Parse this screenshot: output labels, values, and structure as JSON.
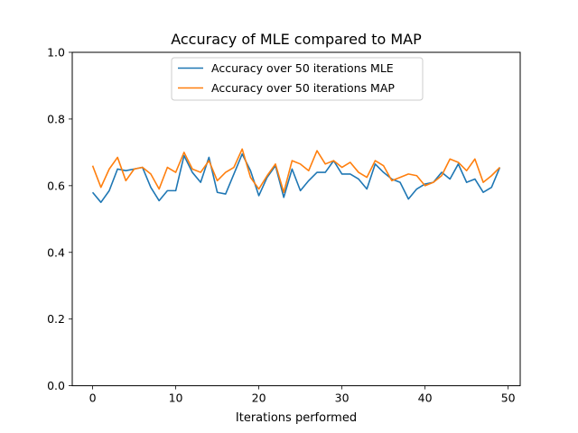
{
  "chart_data": {
    "type": "line",
    "title": "Accuracy of MLE compared to MAP",
    "xlabel": "Iterations performed",
    "ylabel": "",
    "xlim": [
      -2.45,
      51.45
    ],
    "ylim": [
      0.0,
      1.0
    ],
    "xticks": [
      0,
      10,
      20,
      30,
      40,
      50
    ],
    "yticks": [
      0.0,
      0.2,
      0.4,
      0.6,
      0.8,
      1.0
    ],
    "xtick_labels": [
      "0",
      "10",
      "20",
      "30",
      "40",
      "50"
    ],
    "ytick_labels": [
      "0.0",
      "0.2",
      "0.4",
      "0.6",
      "0.8",
      "1.0"
    ],
    "grid": false,
    "legend_position": "upper center",
    "x": [
      0,
      1,
      2,
      3,
      4,
      5,
      6,
      7,
      8,
      9,
      10,
      11,
      12,
      13,
      14,
      15,
      16,
      17,
      18,
      19,
      20,
      21,
      22,
      23,
      24,
      25,
      26,
      27,
      28,
      29,
      30,
      31,
      32,
      33,
      34,
      35,
      36,
      37,
      38,
      39,
      40,
      41,
      42,
      43,
      44,
      45,
      46,
      47,
      48,
      49
    ],
    "series": [
      {
        "name": "Accuracy over 50 iterations MLE",
        "color": "#1f77b4",
        "values": [
          0.58,
          0.55,
          0.585,
          0.65,
          0.645,
          0.65,
          0.655,
          0.595,
          0.555,
          0.585,
          0.585,
          0.69,
          0.64,
          0.61,
          0.685,
          0.58,
          0.575,
          0.635,
          0.695,
          0.645,
          0.57,
          0.625,
          0.66,
          0.565,
          0.65,
          0.585,
          0.615,
          0.64,
          0.64,
          0.675,
          0.635,
          0.635,
          0.62,
          0.59,
          0.665,
          0.64,
          0.62,
          0.61,
          0.56,
          0.59,
          0.605,
          0.61,
          0.64,
          0.62,
          0.665,
          0.61,
          0.62,
          0.58,
          0.595,
          0.655
        ]
      },
      {
        "name": "Accuracy over 50 iterations MAP",
        "color": "#ff7f0e",
        "values": [
          0.66,
          0.595,
          0.65,
          0.685,
          0.615,
          0.65,
          0.655,
          0.635,
          0.59,
          0.655,
          0.64,
          0.7,
          0.65,
          0.64,
          0.675,
          0.615,
          0.64,
          0.655,
          0.71,
          0.625,
          0.59,
          0.63,
          0.665,
          0.58,
          0.675,
          0.665,
          0.645,
          0.705,
          0.665,
          0.675,
          0.655,
          0.67,
          0.64,
          0.625,
          0.675,
          0.66,
          0.615,
          0.625,
          0.635,
          0.63,
          0.6,
          0.61,
          0.63,
          0.68,
          0.67,
          0.645,
          0.68,
          0.61,
          0.63,
          0.655
        ]
      }
    ]
  }
}
